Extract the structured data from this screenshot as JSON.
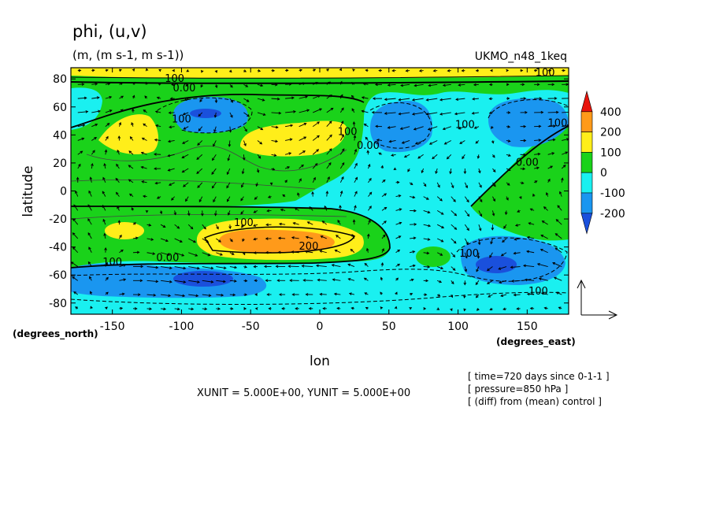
{
  "chart_data": {
    "type": "heatmap",
    "title": "phi, (u,v)",
    "units_line": "(m, (m s-1, m s-1))",
    "experiment": "UKMO_n48_1keq",
    "xlabel": "lon",
    "ylabel": "latitude",
    "x_unit_label": "(degrees_east)",
    "y_unit_label": "(degrees_north)",
    "xlim": [
      -180,
      180
    ],
    "ylim": [
      -88,
      88
    ],
    "x_ticks": [
      {
        "v": -150,
        "label": "-150"
      },
      {
        "v": -100,
        "label": "-100"
      },
      {
        "v": -50,
        "label": "-50"
      },
      {
        "v": 0,
        "label": "0"
      },
      {
        "v": 50,
        "label": "50"
      },
      {
        "v": 100,
        "label": "100"
      },
      {
        "v": 150,
        "label": "150"
      }
    ],
    "y_ticks": [
      {
        "v": 80,
        "label": "80"
      },
      {
        "v": 60,
        "label": "60"
      },
      {
        "v": 40,
        "label": "40"
      },
      {
        "v": 20,
        "label": "20"
      },
      {
        "v": 0,
        "label": "0"
      },
      {
        "v": -20,
        "label": "-20"
      },
      {
        "v": -40,
        "label": "-40"
      },
      {
        "v": -60,
        "label": "-60"
      },
      {
        "v": -80,
        "label": "-80"
      }
    ],
    "colorbar": {
      "levels": [
        "400",
        "200",
        "100",
        "0",
        "-100",
        "-200"
      ],
      "colors": [
        "#e8140c",
        "#ff9a1a",
        "#ffee1a",
        "#1ad21a",
        "#1af0f0",
        "#1a96f0",
        "#1a50dc"
      ]
    },
    "contour_labels": [
      {
        "text": "100",
        "lon": -105,
        "lat": 78
      },
      {
        "text": "0.00",
        "lon": -98,
        "lat": 71
      },
      {
        "text": "100",
        "lon": -100,
        "lat": 49
      },
      {
        "text": "100",
        "lon": 20,
        "lat": 40
      },
      {
        "text": "0.00",
        "lon": 35,
        "lat": 30
      },
      {
        "text": "100",
        "lon": 105,
        "lat": 45
      },
      {
        "text": "100",
        "lon": 172,
        "lat": 46
      },
      {
        "text": "0.00",
        "lon": 150,
        "lat": 18
      },
      {
        "text": "100",
        "lon": 163,
        "lat": 82
      },
      {
        "text": "100",
        "lon": -55,
        "lat": -25
      },
      {
        "text": "200",
        "lon": -8,
        "lat": -42
      },
      {
        "text": "0.00",
        "lon": -110,
        "lat": -50
      },
      {
        "text": "100",
        "lon": -150,
        "lat": -53
      },
      {
        "text": "100",
        "lon": 108,
        "lat": -47
      },
      {
        "text": "100",
        "lon": 158,
        "lat": -74
      }
    ],
    "annotations": {
      "scale_text": "XUNIT = 5.000E+00, YUNIT = 5.000E+00",
      "info_lines": [
        "[ time=720 days since 0-1-1 ]",
        "[ pressure=850 hPa ]",
        "[ (diff) from (mean) control ]"
      ]
    },
    "grid": false,
    "legend_position": "right"
  }
}
